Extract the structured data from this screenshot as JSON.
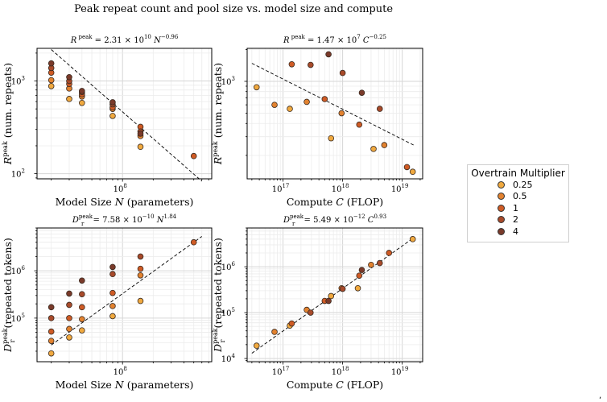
{
  "suptitle": "Peak repeat count and pool size vs. model size and compute",
  "legend": {
    "title": "Overtrain Multiplier",
    "items": [
      {
        "label": "0.25",
        "color": "#f0a93f"
      },
      {
        "label": "0.5",
        "color": "#e2822f"
      },
      {
        "label": "1",
        "color": "#cf5b25"
      },
      {
        "label": "2",
        "color": "#a84a2a"
      },
      {
        "label": "4",
        "color": "#7a3a2a"
      }
    ]
  },
  "stray_mark": ",",
  "chart_data": [
    {
      "type": "scatter",
      "title_parts": [
        "R",
        "peak",
        " = 2.31 × 10",
        "10",
        " N",
        "−0.96"
      ],
      "xlabel_parts": [
        "Model Size ",
        "N",
        " (parameters)"
      ],
      "ylabel_parts": [
        "R",
        "peak",
        " (num. repeats)"
      ],
      "x_scale": "log",
      "y_scale": "log",
      "xlim": [
        14500000,
        750000000
      ],
      "ylim": [
        88,
        2250
      ],
      "x_ticks": [
        {
          "v": 100000000,
          "b": "10",
          "e": "8"
        }
      ],
      "y_ticks": [
        {
          "v": 100,
          "b": "10",
          "e": "2"
        },
        {
          "v": 1000,
          "b": "10",
          "e": "3"
        }
      ],
      "fit": {
        "x": [
          20000000,
          600000000
        ],
        "y": [
          2184,
          83
        ]
      },
      "series": [
        {
          "multiplier": "0.25",
          "x": [
            20000000,
            30000000,
            40000000,
            80000000,
            150000000
          ],
          "y": [
            880,
            640,
            580,
            420,
            195
          ]
        },
        {
          "multiplier": "0.5",
          "x": [
            20000000,
            30000000,
            40000000,
            80000000,
            150000000
          ],
          "y": [
            1020,
            830,
            680,
            500,
            255
          ]
        },
        {
          "multiplier": "1",
          "x": [
            20000000,
            30000000,
            40000000,
            80000000,
            150000000,
            500000000
          ],
          "y": [
            1230,
            930,
            720,
            520,
            320,
            155
          ]
        },
        {
          "multiplier": "2",
          "x": [
            20000000,
            30000000,
            40000000,
            80000000,
            150000000
          ],
          "y": [
            1380,
            1000,
            760,
            560,
            285
          ]
        },
        {
          "multiplier": "4",
          "x": [
            20000000,
            30000000,
            40000000,
            80000000,
            150000000
          ],
          "y": [
            1550,
            1100,
            780,
            590,
            270
          ]
        }
      ]
    },
    {
      "type": "scatter",
      "title_parts": [
        "R",
        "peak",
        " = 1.47 × 10",
        "7",
        " C",
        "−0.25"
      ],
      "xlabel_parts": [
        "Compute ",
        "C",
        " (FLOP)"
      ],
      "ylabel_parts": [
        "R",
        "peak",
        " (num. repeats)"
      ],
      "x_scale": "log",
      "y_scale": "log",
      "xlim": [
        2.5e+16,
        2.2e+19
      ],
      "ylim": [
        120,
        2050
      ],
      "x_ticks": [
        {
          "v": 1e+17,
          "b": "10",
          "e": "17"
        },
        {
          "v": 1e+18,
          "b": "10",
          "e": "18"
        },
        {
          "v": 1e+19,
          "b": "10",
          "e": "19"
        }
      ],
      "y_ticks": [
        {
          "v": 1000,
          "b": "10",
          "e": "3"
        }
      ],
      "fit": {
        "x": [
          3e+16,
          1.6e+19
        ],
        "y": [
          1480,
          248
        ]
      },
      "series": [
        {
          "multiplier": "0.25",
          "x": [
            3.6e+16,
            1.3e+17,
            6.4e+17,
            3.3e+18,
            1.5e+19
          ],
          "y": [
            880,
            550,
            290,
            230,
            140
          ]
        },
        {
          "multiplier": "0.5",
          "x": [
            7.2e+16,
            2.5e+17,
            9.6e+17,
            5e+18
          ],
          "y": [
            600,
            640,
            500,
            250
          ]
        },
        {
          "multiplier": "1",
          "x": [
            1.4e+17,
            5e+17,
            1.9e+18,
            1.2e+19
          ],
          "y": [
            1450,
            680,
            390,
            155
          ]
        },
        {
          "multiplier": "2",
          "x": [
            2.9e+17,
            1e+18,
            4.2e+18
          ],
          "y": [
            1430,
            1200,
            550
          ]
        },
        {
          "multiplier": "4",
          "x": [
            5.8e+17,
            2.1e+18
          ],
          "y": [
            1800,
            780
          ]
        }
      ]
    },
    {
      "type": "scatter",
      "title_parts": [
        "D",
        "peak",
        "r",
        " = 7.58 × 10",
        "−10",
        " N",
        "1.84"
      ],
      "xlabel_parts": [
        "Model Size ",
        "N",
        " (parameters)"
      ],
      "ylabel_parts": [
        "D",
        "peak",
        "r",
        " (repeated tokens)"
      ],
      "x_scale": "log",
      "y_scale": "log",
      "xlim": [
        14500000,
        750000000
      ],
      "ylim": [
        12000,
        8000000
      ],
      "x_ticks": [
        {
          "v": 100000000,
          "b": "10",
          "e": "8"
        }
      ],
      "y_ticks": [
        {
          "v": 100000,
          "b": "10",
          "e": "5"
        },
        {
          "v": 1000000,
          "b": "10",
          "e": "6"
        }
      ],
      "fit": {
        "x": [
          20000000,
          600000000
        ],
        "y": [
          27000,
          5300000
        ]
      },
      "series": [
        {
          "multiplier": "0.25",
          "x": [
            20000000,
            30000000,
            40000000,
            80000000,
            150000000
          ],
          "y": [
            18000,
            39000,
            55000,
            110000,
            230000
          ]
        },
        {
          "multiplier": "0.5",
          "x": [
            20000000,
            30000000,
            40000000,
            80000000,
            150000000
          ],
          "y": [
            33000,
            59000,
            95000,
            180000,
            800000
          ]
        },
        {
          "multiplier": "1",
          "x": [
            20000000,
            30000000,
            40000000,
            80000000,
            150000000,
            500000000
          ],
          "y": [
            52000,
            100000,
            170000,
            340000,
            1100000,
            4000000
          ]
        },
        {
          "multiplier": "2",
          "x": [
            20000000,
            30000000,
            40000000,
            80000000,
            150000000
          ],
          "y": [
            100000,
            190000,
            320000,
            850000,
            2000000
          ]
        },
        {
          "multiplier": "4",
          "x": [
            20000000,
            30000000,
            40000000,
            80000000
          ],
          "y": [
            170000,
            330000,
            620000,
            1200000
          ]
        }
      ]
    },
    {
      "type": "scatter",
      "title_parts": [
        "D",
        "peak",
        "r",
        " = 5.49 × 10",
        "−12",
        " C",
        "0.93"
      ],
      "xlabel_parts": [
        "Compute ",
        "C",
        " (FLOP)"
      ],
      "ylabel_parts": [
        "D",
        "peak",
        "r",
        " (repeated tokens)"
      ],
      "x_scale": "log",
      "y_scale": "log",
      "xlim": [
        2.5e+16,
        2.2e+19
      ],
      "ylim": [
        8500,
        7000000
      ],
      "x_ticks": [
        {
          "v": 1e+17,
          "b": "10",
          "e": "17"
        },
        {
          "v": 1e+18,
          "b": "10",
          "e": "18"
        },
        {
          "v": 1e+19,
          "b": "10",
          "e": "19"
        }
      ],
      "y_ticks": [
        {
          "v": 10000,
          "b": "10",
          "e": "4"
        },
        {
          "v": 100000,
          "b": "10",
          "e": "5"
        },
        {
          "v": 1000000,
          "b": "10",
          "e": "6"
        }
      ],
      "fit": {
        "x": [
          3e+16,
          1.6e+19
        ],
        "y": [
          13000,
          4400000
        ]
      },
      "series": [
        {
          "multiplier": "0.25",
          "x": [
            3.6e+16,
            1.3e+17,
            6.4e+17,
            1.8e+18,
            1.5e+19
          ],
          "y": [
            19000,
            52000,
            230000,
            340000,
            4000000
          ]
        },
        {
          "multiplier": "0.5",
          "x": [
            7.2e+16,
            2.5e+17,
            9.6e+17,
            3e+18
          ],
          "y": [
            38000,
            115000,
            340000,
            1100000
          ]
        },
        {
          "multiplier": "1",
          "x": [
            1.4e+17,
            5e+17,
            1.9e+18,
            6e+18
          ],
          "y": [
            58000,
            180000,
            640000,
            2000000
          ]
        },
        {
          "multiplier": "2",
          "x": [
            2.9e+17,
            1e+18,
            4.2e+18
          ],
          "y": [
            100000,
            330000,
            1200000
          ]
        },
        {
          "multiplier": "4",
          "x": [
            5.8e+17,
            2.1e+18
          ],
          "y": [
            180000,
            850000
          ]
        }
      ]
    }
  ]
}
